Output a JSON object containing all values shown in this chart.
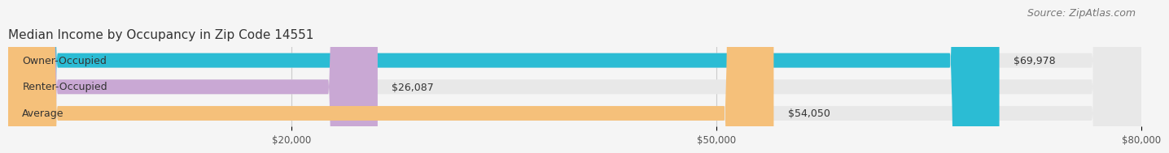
{
  "title": "Median Income by Occupancy in Zip Code 14551",
  "source": "Source: ZipAtlas.com",
  "categories": [
    "Owner-Occupied",
    "Renter-Occupied",
    "Average"
  ],
  "values": [
    69978,
    26087,
    54050
  ],
  "labels": [
    "$69,978",
    "$26,087",
    "$54,050"
  ],
  "bar_colors": [
    "#2bbcd4",
    "#c9a8d4",
    "#f5c07a"
  ],
  "bar_bg_color": "#e8e8e8",
  "x_max": 80000,
  "x_ticks": [
    20000,
    50000,
    80000
  ],
  "x_tick_labels": [
    "$20,000",
    "$50,000",
    "$80,000"
  ],
  "title_fontsize": 11,
  "source_fontsize": 9,
  "label_fontsize": 9,
  "cat_fontsize": 9,
  "background_color": "#f5f5f5",
  "bar_bg_color2": "#e8e8e8"
}
